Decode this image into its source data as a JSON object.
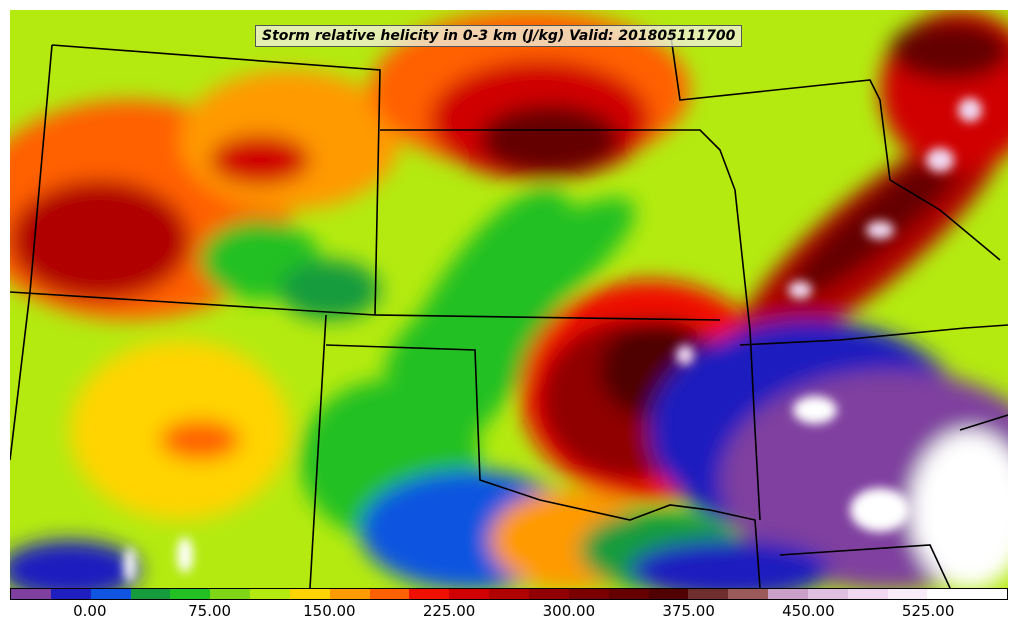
{
  "title": "Storm relative helicity in 0-3 km (J/kg) Valid: 201805111700",
  "colorbar": {
    "min": -50,
    "max": 575,
    "step": 25,
    "colors": [
      "#7f3f9f",
      "#1f1fbf",
      "#0f55e0",
      "#159b3c",
      "#22c022",
      "#7fd617",
      "#b4ea10",
      "#ffd400",
      "#ff9a00",
      "#ff6000",
      "#f01000",
      "#d00000",
      "#b00000",
      "#900000",
      "#7a0000",
      "#650000",
      "#500000",
      "#6e2e2e",
      "#9b5a5a",
      "#caa0c8",
      "#e0c0e0",
      "#f0d8f0",
      "#f8ecf8",
      "#ffffff",
      "#ffffff"
    ],
    "tick_values": [
      0,
      75,
      150,
      225,
      300,
      375,
      450,
      525
    ],
    "tick_labels": [
      "0.00",
      "75.00",
      "150.00",
      "225.00",
      "300.00",
      "375.00",
      "450.00",
      "525.00"
    ]
  },
  "regions": [
    {
      "name": "northwest-orange-band",
      "value": 160
    },
    {
      "name": "central-ne-maximum",
      "value": 360
    },
    {
      "name": "kansas-green-band",
      "value": 60
    },
    {
      "name": "oklahoma-maximum",
      "value": 380
    },
    {
      "name": "iowa-missouri-band",
      "value": 320
    },
    {
      "name": "southeast-purple-zone",
      "value": -30
    },
    {
      "name": "far-southeast-white-patches",
      "value": 480
    },
    {
      "name": "southwest-green-zone",
      "value": 70
    },
    {
      "name": "texas-blue-zone",
      "value": 10
    }
  ]
}
